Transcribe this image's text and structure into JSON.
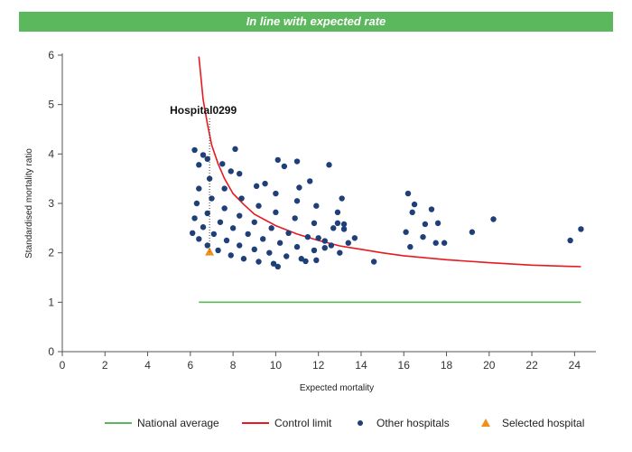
{
  "banner": {
    "text": "In line with expected rate",
    "color": "#5cb85c"
  },
  "chart_data": {
    "type": "scatter",
    "xlabel": "Expected mortality",
    "ylabel": "Standardised mortality ratio",
    "xlim": [
      0,
      25
    ],
    "ylim": [
      0,
      6
    ],
    "xticks": [
      0,
      2,
      4,
      6,
      8,
      10,
      12,
      14,
      16,
      18,
      20,
      22,
      24
    ],
    "yticks": [
      0,
      1,
      2,
      3,
      4,
      5,
      6
    ],
    "grid": false,
    "legend_position": "bottom",
    "annotation": {
      "label": "Hospital0299",
      "x": 6.9,
      "y": 2.02
    },
    "series": [
      {
        "name": "National average",
        "kind": "line",
        "color": "#5cb85c",
        "points": [
          [
            6.4,
            1.0
          ],
          [
            24.3,
            1.0
          ]
        ]
      },
      {
        "name": "Control limit",
        "kind": "line",
        "color": "#e8191f",
        "points": [
          [
            6.4,
            5.97
          ],
          [
            6.6,
            5.1
          ],
          [
            6.8,
            4.6
          ],
          [
            7.0,
            4.18
          ],
          [
            7.3,
            3.8
          ],
          [
            7.6,
            3.5
          ],
          [
            8.0,
            3.2
          ],
          [
            8.5,
            2.98
          ],
          [
            9.0,
            2.78
          ],
          [
            10.0,
            2.55
          ],
          [
            11.0,
            2.38
          ],
          [
            12.0,
            2.25
          ],
          [
            13.0,
            2.14
          ],
          [
            14.0,
            2.07
          ],
          [
            15.0,
            2.0
          ],
          [
            16.0,
            1.94
          ],
          [
            18.0,
            1.86
          ],
          [
            20.0,
            1.8
          ],
          [
            22.0,
            1.75
          ],
          [
            24.3,
            1.72
          ]
        ]
      },
      {
        "name": "Other hospitals",
        "kind": "scatter",
        "color": "#1f3f78",
        "points": [
          [
            6.1,
            2.4
          ],
          [
            6.4,
            2.28
          ],
          [
            6.8,
            2.15
          ],
          [
            7.3,
            2.05
          ],
          [
            7.9,
            1.95
          ],
          [
            8.5,
            1.88
          ],
          [
            9.2,
            1.82
          ],
          [
            9.9,
            1.78
          ],
          [
            6.2,
            2.7
          ],
          [
            6.6,
            2.52
          ],
          [
            7.1,
            2.38
          ],
          [
            7.7,
            2.25
          ],
          [
            8.3,
            2.15
          ],
          [
            9.0,
            2.07
          ],
          [
            9.7,
            2.0
          ],
          [
            10.5,
            1.93
          ],
          [
            11.2,
            1.88
          ],
          [
            6.3,
            3.0
          ],
          [
            6.8,
            2.8
          ],
          [
            7.4,
            2.62
          ],
          [
            8.0,
            2.5
          ],
          [
            8.7,
            2.38
          ],
          [
            9.4,
            2.28
          ],
          [
            10.2,
            2.2
          ],
          [
            11.0,
            2.12
          ],
          [
            11.8,
            2.05
          ],
          [
            6.4,
            3.3
          ],
          [
            7.0,
            3.1
          ],
          [
            7.6,
            2.9
          ],
          [
            8.3,
            2.75
          ],
          [
            9.0,
            2.62
          ],
          [
            9.8,
            2.5
          ],
          [
            10.6,
            2.4
          ],
          [
            11.5,
            2.32
          ],
          [
            12.3,
            2.24
          ],
          [
            6.9,
            3.5
          ],
          [
            7.6,
            3.3
          ],
          [
            8.4,
            3.1
          ],
          [
            9.2,
            2.95
          ],
          [
            10.0,
            2.82
          ],
          [
            10.9,
            2.7
          ],
          [
            11.8,
            2.6
          ],
          [
            12.7,
            2.5
          ],
          [
            7.5,
            3.8
          ],
          [
            8.3,
            3.6
          ],
          [
            9.1,
            3.35
          ],
          [
            10.0,
            3.2
          ],
          [
            11.0,
            3.05
          ],
          [
            11.9,
            2.95
          ],
          [
            12.9,
            2.82
          ],
          [
            6.2,
            4.08
          ],
          [
            6.4,
            3.78
          ],
          [
            6.6,
            3.98
          ],
          [
            6.8,
            3.9
          ],
          [
            8.1,
            4.1
          ],
          [
            7.9,
            3.65
          ],
          [
            10.1,
            3.88
          ],
          [
            10.4,
            3.75
          ],
          [
            11.0,
            3.85
          ],
          [
            12.5,
            3.78
          ],
          [
            9.5,
            3.4
          ],
          [
            11.1,
            3.32
          ],
          [
            11.6,
            3.45
          ],
          [
            13.1,
            3.1
          ],
          [
            12.0,
            2.3
          ],
          [
            12.3,
            2.1
          ],
          [
            12.6,
            2.15
          ],
          [
            13.0,
            2.0
          ],
          [
            13.2,
            2.48
          ],
          [
            13.4,
            2.2
          ],
          [
            13.7,
            2.3
          ],
          [
            12.9,
            2.6
          ],
          [
            13.2,
            2.58
          ],
          [
            14.6,
            1.82
          ],
          [
            11.4,
            1.83
          ],
          [
            11.9,
            1.85
          ],
          [
            10.1,
            1.72
          ],
          [
            16.1,
            2.42
          ],
          [
            16.2,
            3.2
          ],
          [
            16.3,
            2.12
          ],
          [
            16.4,
            2.82
          ],
          [
            16.5,
            2.98
          ],
          [
            16.9,
            2.32
          ],
          [
            17.0,
            2.58
          ],
          [
            17.3,
            2.88
          ],
          [
            17.5,
            2.2
          ],
          [
            17.6,
            2.6
          ],
          [
            17.9,
            2.2
          ],
          [
            19.2,
            2.42
          ],
          [
            20.2,
            2.68
          ],
          [
            23.8,
            2.25
          ],
          [
            24.3,
            2.48
          ]
        ]
      },
      {
        "name": "Selected hospital",
        "kind": "marker",
        "color": "#f0901e",
        "points": [
          [
            6.9,
            2.02
          ]
        ]
      }
    ]
  }
}
